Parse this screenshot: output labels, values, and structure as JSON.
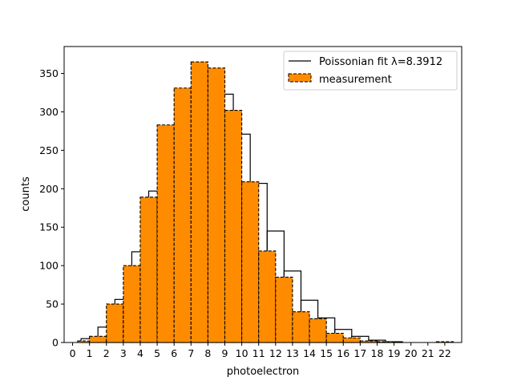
{
  "chart_data": {
    "type": "bar",
    "xlabel": "photoelectron",
    "ylabel": "counts",
    "xlim": [
      -0.5,
      23
    ],
    "ylim": [
      0,
      385
    ],
    "x_ticks": [
      0,
      1,
      2,
      3,
      4,
      5,
      6,
      7,
      8,
      9,
      10,
      11,
      12,
      13,
      14,
      15,
      16,
      17,
      18,
      19,
      20,
      21,
      22
    ],
    "y_ticks": [
      0,
      50,
      100,
      150,
      200,
      250,
      300,
      350
    ],
    "grid": false,
    "legend_placement": "top-right",
    "series": [
      {
        "name": "Poissonian fit λ=8.3912",
        "style": "step-outline",
        "color": "#000000",
        "bins": [
          [
            0.5,
            1.5,
            5
          ],
          [
            1.5,
            2.5,
            20
          ],
          [
            2.5,
            3.5,
            56
          ],
          [
            3.5,
            4.5,
            118
          ],
          [
            4.5,
            5.5,
            197
          ],
          [
            5.5,
            6.5,
            275
          ],
          [
            6.5,
            7.5,
            330
          ],
          [
            7.5,
            8.5,
            346
          ],
          [
            8.5,
            9.5,
            323
          ],
          [
            9.5,
            10.5,
            271
          ],
          [
            10.5,
            11.5,
            207
          ],
          [
            11.5,
            12.5,
            145
          ],
          [
            12.5,
            13.5,
            93
          ],
          [
            13.5,
            14.5,
            55
          ],
          [
            14.5,
            15.5,
            32
          ],
          [
            15.5,
            16.5,
            17
          ],
          [
            16.5,
            17.5,
            8
          ],
          [
            17.5,
            18.5,
            3
          ],
          [
            18.5,
            19.5,
            1
          ]
        ]
      },
      {
        "name": "measurement",
        "style": "filled-dashed",
        "color": "#ff8c00",
        "bins": [
          [
            0.3,
            1.0,
            2
          ],
          [
            1.0,
            2.0,
            8
          ],
          [
            2.0,
            3.0,
            50
          ],
          [
            3.0,
            4.0,
            100
          ],
          [
            4.0,
            5.0,
            189
          ],
          [
            5.0,
            6.0,
            283
          ],
          [
            6.0,
            7.0,
            331
          ],
          [
            7.0,
            8.0,
            365
          ],
          [
            8.0,
            9.0,
            357
          ],
          [
            9.0,
            10.0,
            302
          ],
          [
            10.0,
            11.0,
            209
          ],
          [
            11.0,
            12.0,
            119
          ],
          [
            12.0,
            13.0,
            85
          ],
          [
            13.0,
            14.0,
            40
          ],
          [
            14.0,
            15.0,
            31
          ],
          [
            15.0,
            16.0,
            12
          ],
          [
            16.0,
            17.0,
            6
          ],
          [
            17.0,
            18.0,
            2
          ],
          [
            18.0,
            19.0,
            1
          ],
          [
            21.5,
            22.5,
            1
          ]
        ]
      }
    ]
  }
}
